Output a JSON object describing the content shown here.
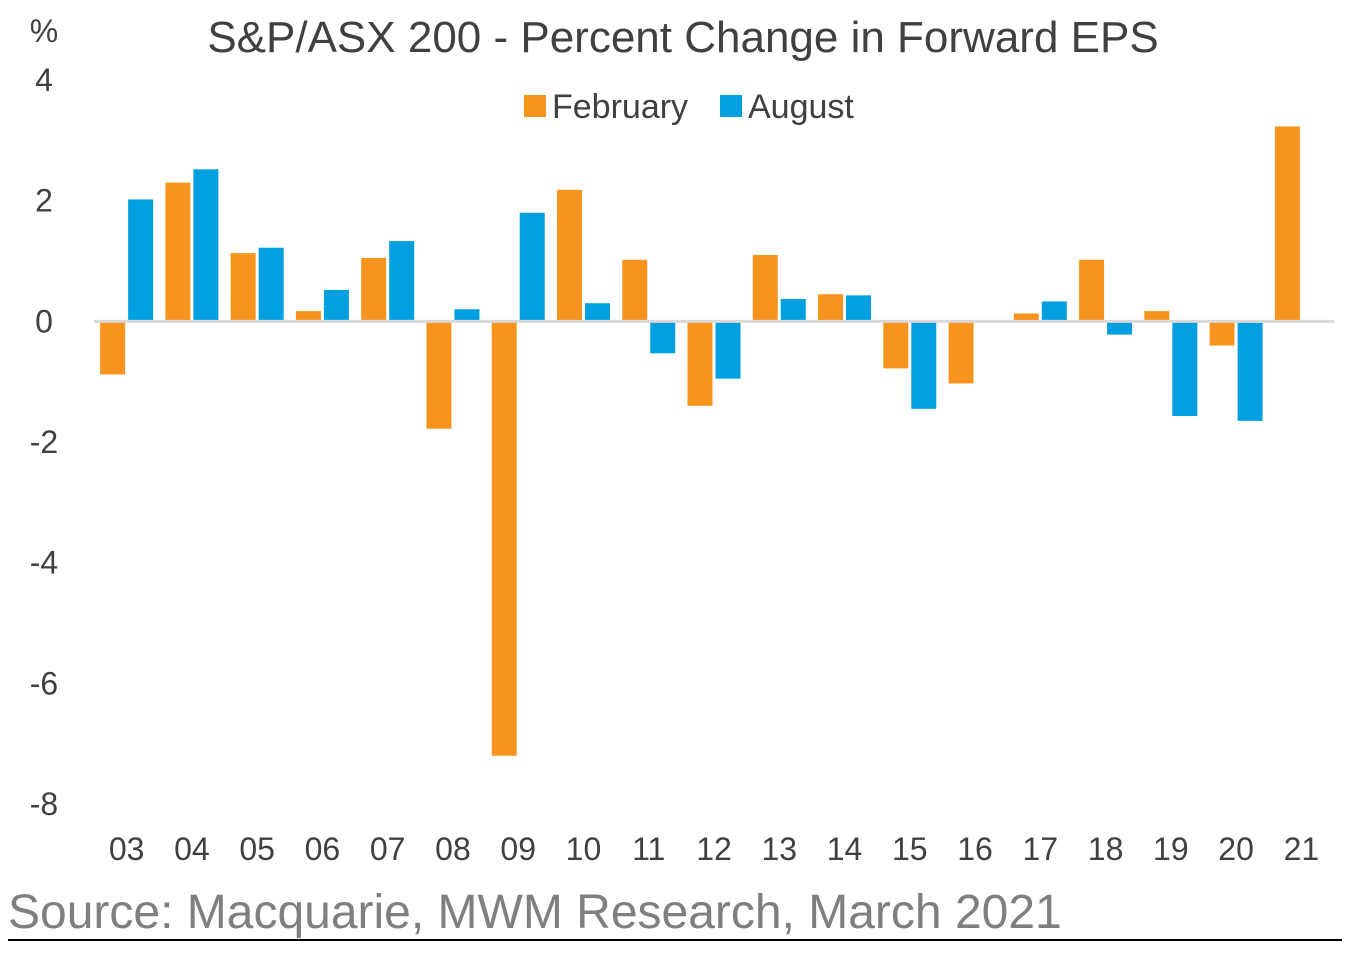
{
  "chart_data": {
    "type": "bar",
    "title": "S&P/ASX 200 - Percent Change in Forward EPS",
    "ylabel": "%",
    "xlabel": "",
    "categories": [
      "03",
      "04",
      "05",
      "06",
      "07",
      "08",
      "09",
      "10",
      "11",
      "12",
      "13",
      "14",
      "15",
      "16",
      "17",
      "18",
      "19",
      "20",
      "21"
    ],
    "series": [
      {
        "name": "February",
        "color": "#F7941D",
        "values": [
          -0.88,
          2.3,
          1.13,
          0.17,
          1.05,
          -1.78,
          -7.2,
          2.18,
          1.02,
          -1.4,
          1.1,
          0.45,
          -0.78,
          -1.03,
          0.13,
          1.02,
          0.17,
          -0.4,
          3.23
        ]
      },
      {
        "name": "August",
        "color": "#00A0E0",
        "values": [
          2.02,
          2.52,
          1.22,
          0.52,
          1.33,
          0.2,
          1.8,
          0.3,
          -0.53,
          -0.95,
          0.37,
          0.43,
          -1.45,
          0.02,
          0.33,
          -0.22,
          -1.57,
          -1.65,
          null
        ]
      }
    ],
    "ylim": [
      -8,
      4
    ],
    "yticks": [
      4,
      2,
      0,
      -2,
      -4,
      -6,
      -8
    ],
    "ytick_labels": [
      "4",
      "2",
      "0",
      "-2",
      "-4",
      "-6",
      "-8"
    ],
    "grid": false,
    "legend_position": "top-center",
    "zero_line_color": "#D9D9D9"
  },
  "source_text": "Source: Macquarie, MWM Research, March 2021"
}
